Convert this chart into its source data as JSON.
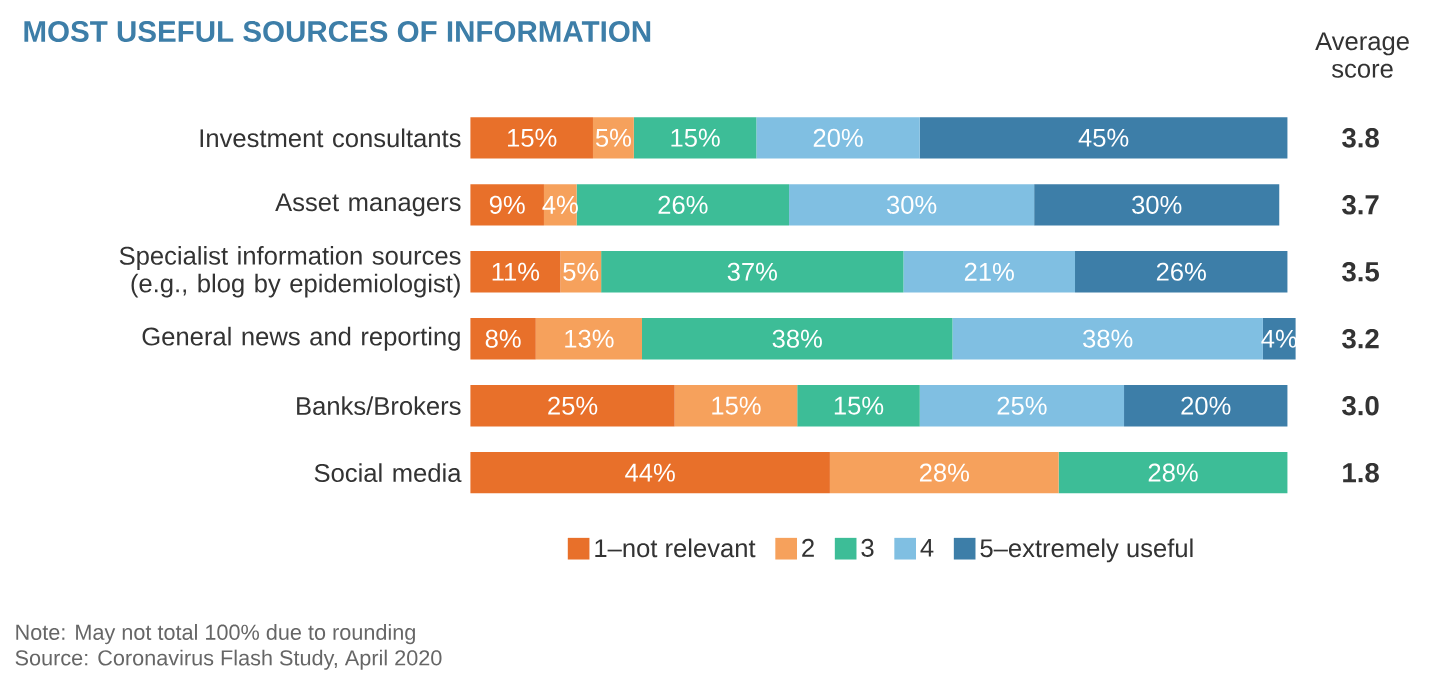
{
  "chart_data": {
    "type": "bar",
    "orientation": "horizontal",
    "stacked": true,
    "title": "MOST USEFUL SOURCES OF INFORMATION",
    "categories": [
      "Investment consultants",
      "Asset managers",
      "Specialist information sources (e.g., blog by epidemiologist)",
      "General news and reporting",
      "Banks/Brokers",
      "Social media"
    ],
    "series": [
      {
        "name": "1–not relevant",
        "color": "#e8702a",
        "values": [
          15,
          9,
          11,
          8,
          25,
          44
        ],
        "value_labels": [
          "15%",
          "9%",
          "11%",
          "8%",
          "25%",
          "44%"
        ]
      },
      {
        "name": "2",
        "color": "#f6a15c",
        "values": [
          5,
          4,
          5,
          13,
          15,
          28
        ],
        "value_labels": [
          "5%",
          "4%",
          "5%",
          "13%",
          "15%",
          "28%"
        ]
      },
      {
        "name": "3",
        "color": "#3dbd97",
        "values": [
          15,
          26,
          37,
          38,
          15,
          28
        ],
        "value_labels": [
          "15%",
          "26%",
          "37%",
          "38%",
          "15%",
          "28%"
        ]
      },
      {
        "name": "4",
        "color": "#80bfe2",
        "values": [
          20,
          30,
          21,
          38,
          25,
          null
        ],
        "value_labels": [
          "20%",
          "30%",
          "21%",
          "38%",
          "25%",
          null
        ]
      },
      {
        "name": "5–extremely useful",
        "color": "#3d7ea8",
        "values": [
          45,
          30,
          26,
          4,
          20,
          null
        ],
        "value_labels": [
          "45%",
          "30%",
          "26%",
          "4%",
          "20%",
          null
        ]
      }
    ],
    "legend": "bottom",
    "annotations": [
      "Average score",
      "3.8",
      "3.7",
      "3.5",
      "3.2",
      "3.0",
      "1.8",
      "Note: May not total 100% due to rounding",
      "Source: Coronavirus Flash Study, April 2020"
    ]
  }
}
